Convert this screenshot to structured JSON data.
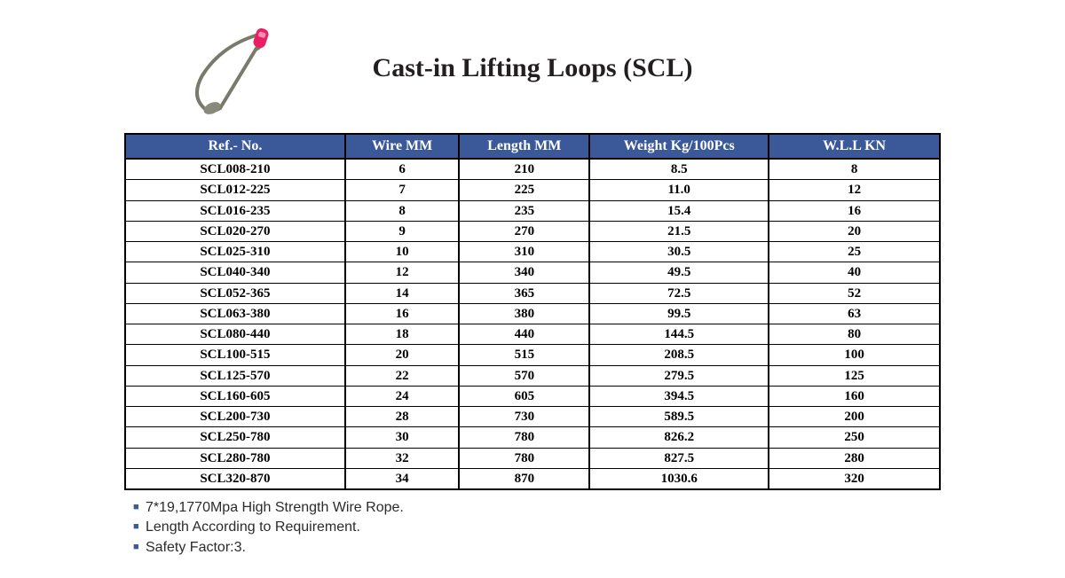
{
  "title": "Cast-in Lifting Loops (SCL)",
  "table": {
    "header_bg": "#3b5998",
    "header_fg": "#ffffff",
    "border_color": "#000000",
    "columns": [
      "Ref.- No.",
      "Wire MM",
      "Length MM",
      "Weight Kg/100Pcs",
      "W.L.L KN"
    ],
    "rows": [
      [
        "SCL008-210",
        "6",
        "210",
        "8.5",
        "8"
      ],
      [
        "SCL012-225",
        "7",
        "225",
        "11.0",
        "12"
      ],
      [
        "SCL016-235",
        "8",
        "235",
        "15.4",
        "16"
      ],
      [
        "SCL020-270",
        "9",
        "270",
        "21.5",
        "20"
      ],
      [
        "SCL025-310",
        "10",
        "310",
        "30.5",
        "25"
      ],
      [
        "SCL040-340",
        "12",
        "340",
        "49.5",
        "40"
      ],
      [
        "SCL052-365",
        "14",
        "365",
        "72.5",
        "52"
      ],
      [
        "SCL063-380",
        "16",
        "380",
        "99.5",
        "63"
      ],
      [
        "SCL080-440",
        "18",
        "440",
        "144.5",
        "80"
      ],
      [
        "SCL100-515",
        "20",
        "515",
        "208.5",
        "100"
      ],
      [
        "SCL125-570",
        "22",
        "570",
        "279.5",
        "125"
      ],
      [
        "SCL160-605",
        "24",
        "605",
        "394.5",
        "160"
      ],
      [
        "SCL200-730",
        "28",
        "730",
        "589.5",
        "200"
      ],
      [
        "SCL250-780",
        "30",
        "780",
        "826.2",
        "250"
      ],
      [
        "SCL280-780",
        "32",
        "780",
        "827.5",
        "280"
      ],
      [
        "SCL320-870",
        "34",
        "870",
        "1030.6",
        "320"
      ]
    ]
  },
  "notes": [
    "7*19,1770Mpa High Strength Wire Rope.",
    "Length According to Requirement.",
    "Safety Factor:3."
  ],
  "image": {
    "tag_color": "#e91e63",
    "rope_color": "#7a7a6a",
    "ferrule_color": "#8a8a7a"
  }
}
